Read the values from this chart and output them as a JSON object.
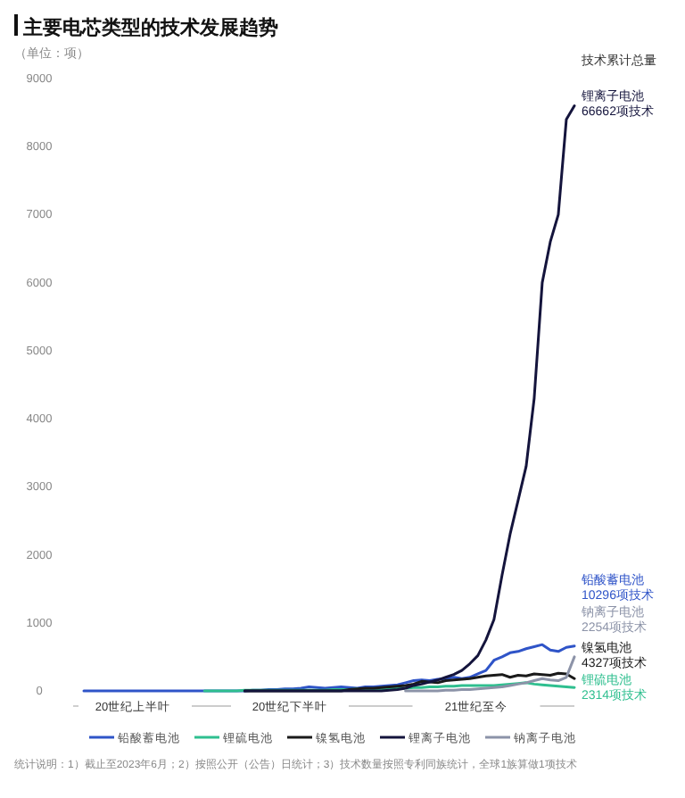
{
  "chart_data": {
    "type": "line",
    "title": "主要电芯类型的技术发展趋势",
    "ylabel": "（单位：项）",
    "categories": [
      null,
      null,
      null,
      null,
      null,
      null,
      null,
      null,
      null,
      null,
      null,
      null,
      null,
      null,
      null,
      null,
      null,
      null,
      null,
      null,
      null,
      null,
      null,
      null,
      null,
      null,
      null,
      null,
      null,
      null,
      null,
      null,
      null,
      null,
      null,
      null,
      null,
      null,
      null,
      null,
      null,
      null,
      null,
      null,
      null,
      null,
      null,
      null,
      null,
      null,
      null,
      null,
      null,
      null,
      null,
      null,
      null,
      null,
      null,
      null,
      null,
      null
    ],
    "ylim": [
      0,
      9000
    ],
    "yticks": [
      0,
      1000,
      2000,
      3000,
      4000,
      5000,
      6000,
      7000,
      8000,
      9000
    ],
    "grid": false,
    "legend": "bottom",
    "marker": "none",
    "line_style": "solid",
    "series": [
      {
        "name": "铅酸蓄电池",
        "color": "#2f54c8",
        "values": [
          0,
          0,
          0,
          0,
          0,
          0,
          0,
          0,
          0,
          0,
          0,
          0,
          0,
          0,
          0,
          0,
          0,
          0,
          0,
          0,
          0,
          10,
          10,
          20,
          20,
          30,
          30,
          40,
          60,
          50,
          40,
          50,
          60,
          50,
          40,
          60,
          60,
          70,
          80,
          90,
          120,
          150,
          160,
          150,
          170,
          180,
          200,
          180,
          200,
          250,
          300,
          450,
          500,
          560,
          580,
          620,
          650,
          680,
          600,
          580,
          640,
          660
        ]
      },
      {
        "name": "锂硫电池",
        "color": "#2fbf8f",
        "values": [
          null,
          null,
          null,
          null,
          null,
          null,
          null,
          null,
          null,
          null,
          null,
          null,
          null,
          null,
          null,
          0,
          0,
          0,
          0,
          0,
          10,
          10,
          10,
          10,
          10,
          10,
          10,
          10,
          10,
          10,
          10,
          20,
          20,
          20,
          30,
          30,
          30,
          30,
          40,
          40,
          40,
          50,
          50,
          60,
          60,
          70,
          70,
          80,
          80,
          80,
          80,
          80,
          90,
          100,
          110,
          120,
          100,
          90,
          80,
          70,
          60,
          50
        ]
      },
      {
        "name": "镍氢电池",
        "color": "#1a1a1a",
        "values": [
          null,
          null,
          null,
          null,
          null,
          null,
          null,
          null,
          null,
          null,
          null,
          null,
          null,
          null,
          null,
          null,
          null,
          null,
          null,
          null,
          0,
          0,
          0,
          0,
          0,
          0,
          0,
          0,
          0,
          0,
          0,
          0,
          0,
          20,
          30,
          40,
          40,
          50,
          60,
          70,
          80,
          100,
          140,
          130,
          120,
          150,
          160,
          170,
          180,
          200,
          220,
          230,
          240,
          200,
          230,
          220,
          250,
          240,
          230,
          260,
          250,
          180
        ]
      },
      {
        "name": "锂离子电池",
        "color": "#14143c",
        "values": [
          null,
          null,
          null,
          null,
          null,
          null,
          null,
          null,
          null,
          null,
          null,
          null,
          null,
          null,
          null,
          null,
          null,
          null,
          null,
          null,
          0,
          0,
          0,
          0,
          0,
          0,
          0,
          0,
          0,
          0,
          0,
          0,
          0,
          0,
          0,
          0,
          0,
          0,
          10,
          20,
          40,
          80,
          100,
          130,
          160,
          200,
          240,
          300,
          400,
          520,
          750,
          1050,
          1700,
          2300,
          2800,
          3300,
          4300,
          6000,
          6600,
          7000,
          8400,
          8600
        ]
      },
      {
        "name": "钠离子电池",
        "color": "#8c93a8",
        "values": [
          null,
          null,
          null,
          null,
          null,
          null,
          null,
          null,
          null,
          null,
          null,
          null,
          null,
          null,
          null,
          null,
          null,
          null,
          null,
          null,
          null,
          null,
          null,
          null,
          null,
          null,
          null,
          null,
          null,
          null,
          null,
          null,
          null,
          null,
          null,
          null,
          null,
          null,
          null,
          null,
          0,
          0,
          0,
          0,
          0,
          10,
          10,
          20,
          20,
          30,
          40,
          50,
          60,
          80,
          100,
          120,
          150,
          180,
          160,
          150,
          200,
          500
        ]
      }
    ],
    "annotations": [
      "技术累计总量",
      "锂离子电池\n66662项技术",
      "铅酸蓄电池\n10296项技术",
      "钠离子电池\n2254项技术",
      "镍氢电池\n4327项技术",
      "锂硫电池\n2314项技术",
      "20世纪上半叶",
      "20世纪下半叶",
      "21世纪至今",
      "统计说明：1）截止至2023年6月；2）按照公开（公告）日统计；3）技术数量按照专利同族统计，全球1族算做1项技术"
    ]
  }
}
